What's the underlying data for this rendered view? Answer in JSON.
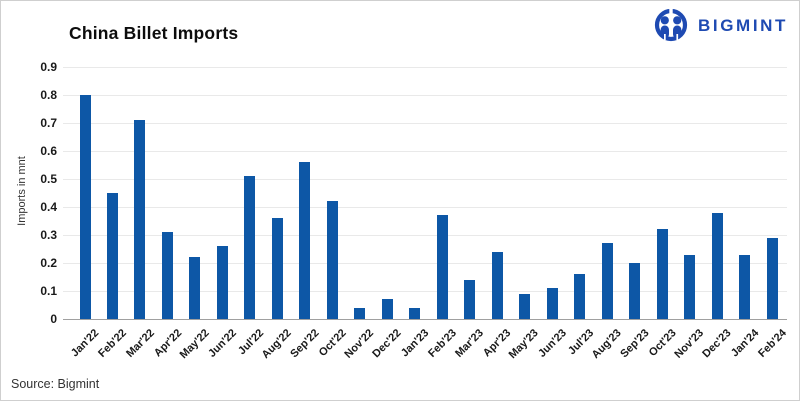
{
  "logo": {
    "text": "BIGMINT",
    "color": "#1e4ab2",
    "icon": "bigmint-people-icon"
  },
  "chart_data": {
    "type": "bar",
    "title": "China Billet Imports",
    "xlabel": "",
    "ylabel": "Imports in mnt",
    "ylim": [
      0,
      0.9
    ],
    "ytick_step": 0.1,
    "grid": true,
    "legend": false,
    "bar_color": "#0d57a6",
    "categories": [
      "Jan'22",
      "Feb'22",
      "Mar'22",
      "Apr'22",
      "May'22",
      "Jun'22",
      "Jul'22",
      "Aug'22",
      "Sep'22",
      "Oct'22",
      "Nov'22",
      "Dec'22",
      "Jan'23",
      "Feb'23",
      "Mar'23",
      "Apr'23",
      "May'23",
      "Jun'23",
      "Jul'23",
      "Aug'23",
      "Sep'23",
      "Oct'23",
      "Nov'23",
      "Dec'23",
      "Jan'24",
      "Feb'24"
    ],
    "values": [
      0.8,
      0.45,
      0.71,
      0.31,
      0.22,
      0.26,
      0.51,
      0.36,
      0.56,
      0.42,
      0.04,
      0.07,
      0.04,
      0.37,
      0.14,
      0.24,
      0.09,
      0.11,
      0.16,
      0.27,
      0.2,
      0.32,
      0.23,
      0.38,
      0.23,
      0.29
    ]
  },
  "footer": {
    "source": "Source: Bigmint"
  }
}
